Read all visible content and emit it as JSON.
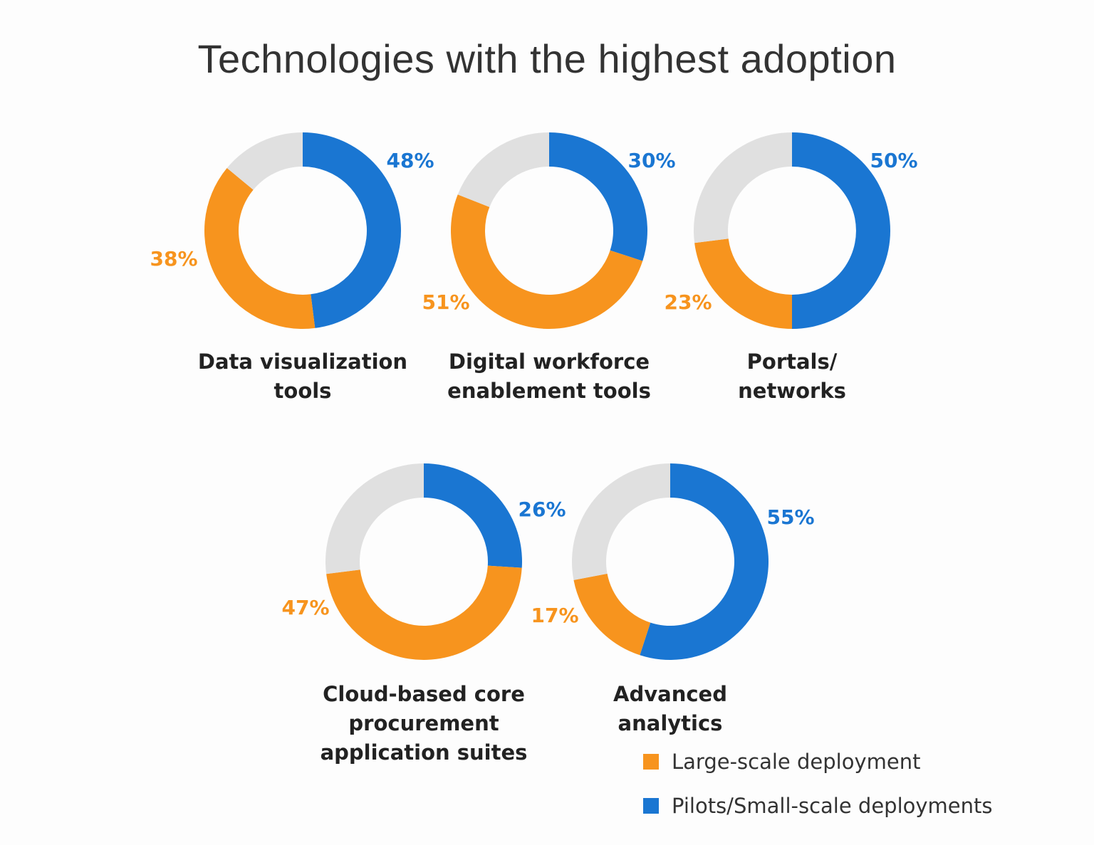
{
  "chart_data": {
    "type": "donut",
    "title": "Technologies with the highest adoption",
    "colors": {
      "large": "#f7941e",
      "pilots": "#1a76d2",
      "remainder": "#e0e0e0"
    },
    "legend": [
      {
        "key": "large",
        "label": "Large-scale deployment",
        "color": "#f7941e"
      },
      {
        "key": "pilots",
        "label": "Pilots/Small-scale deployments",
        "color": "#1a76d2"
      }
    ],
    "legend_position": "bottom-right",
    "charts": [
      {
        "category": [
          "Data visualization",
          "tools"
        ],
        "pilots": 48,
        "large": 38,
        "pilots_label": "48%",
        "large_label": "38%"
      },
      {
        "category": [
          "Digital workforce",
          "enablement tools"
        ],
        "pilots": 30,
        "large": 51,
        "pilots_label": "30%",
        "large_label": "51%"
      },
      {
        "category": [
          "Portals/",
          "networks"
        ],
        "pilots": 50,
        "large": 23,
        "pilots_label": "50%",
        "large_label": "23%"
      },
      {
        "category": [
          "Cloud-based core",
          "procurement",
          "application suites"
        ],
        "pilots": 26,
        "large": 47,
        "pilots_label": "26%",
        "large_label": "47%"
      },
      {
        "category": [
          "Advanced",
          "analytics"
        ],
        "pilots": 55,
        "large": 17,
        "pilots_label": "55%",
        "large_label": "17%"
      }
    ]
  }
}
